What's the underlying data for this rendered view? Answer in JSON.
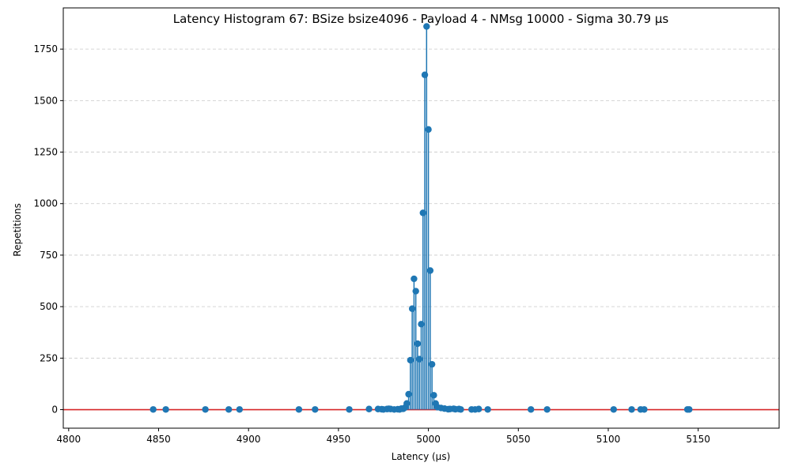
{
  "chart_data": {
    "type": "stem",
    "title": "Latency Histogram 67: BSize bsize4096 - Payload 4 - NMsg 10000 - Sigma 30.79 µs",
    "xlabel": "Latency (µs)",
    "ylabel": "Repetitions",
    "xlim": [
      4797,
      5195
    ],
    "ylim": [
      -90,
      1950
    ],
    "xticks": [
      4800,
      4850,
      4900,
      4950,
      5000,
      5050,
      5100,
      5150
    ],
    "yticks": [
      0,
      250,
      500,
      750,
      1000,
      1250,
      1500,
      1750
    ],
    "grid": "horizontal dashed",
    "baseline": 0,
    "colors": {
      "stem": "#1f77b4",
      "baseline": "#d62728",
      "grid": "#c8c8c8"
    },
    "points": [
      {
        "x": 4847,
        "y": 1
      },
      {
        "x": 4854,
        "y": 1
      },
      {
        "x": 4876,
        "y": 1
      },
      {
        "x": 4889,
        "y": 1
      },
      {
        "x": 4895,
        "y": 1
      },
      {
        "x": 4928,
        "y": 1
      },
      {
        "x": 4937,
        "y": 1
      },
      {
        "x": 4956,
        "y": 1
      },
      {
        "x": 4967,
        "y": 3
      },
      {
        "x": 4972,
        "y": 3
      },
      {
        "x": 4974,
        "y": 2
      },
      {
        "x": 4975,
        "y": 1
      },
      {
        "x": 4977,
        "y": 3
      },
      {
        "x": 4978,
        "y": 4
      },
      {
        "x": 4979,
        "y": 3
      },
      {
        "x": 4981,
        "y": 1
      },
      {
        "x": 4983,
        "y": 2
      },
      {
        "x": 4984,
        "y": 1
      },
      {
        "x": 4985,
        "y": 5
      },
      {
        "x": 4986,
        "y": 4
      },
      {
        "x": 4987,
        "y": 10
      },
      {
        "x": 4988,
        "y": 30
      },
      {
        "x": 4989,
        "y": 75
      },
      {
        "x": 4990,
        "y": 240
      },
      {
        "x": 4991,
        "y": 490
      },
      {
        "x": 4992,
        "y": 635
      },
      {
        "x": 4993,
        "y": 575
      },
      {
        "x": 4994,
        "y": 320
      },
      {
        "x": 4995,
        "y": 245
      },
      {
        "x": 4996,
        "y": 415
      },
      {
        "x": 4997,
        "y": 955
      },
      {
        "x": 4998,
        "y": 1625
      },
      {
        "x": 4999,
        "y": 1860
      },
      {
        "x": 5000,
        "y": 1360
      },
      {
        "x": 5001,
        "y": 675
      },
      {
        "x": 5002,
        "y": 220
      },
      {
        "x": 5003,
        "y": 70
      },
      {
        "x": 5004,
        "y": 30
      },
      {
        "x": 5005,
        "y": 12
      },
      {
        "x": 5007,
        "y": 8
      },
      {
        "x": 5009,
        "y": 5
      },
      {
        "x": 5011,
        "y": 2
      },
      {
        "x": 5012,
        "y": 3
      },
      {
        "x": 5014,
        "y": 4
      },
      {
        "x": 5015,
        "y": 2
      },
      {
        "x": 5017,
        "y": 3
      },
      {
        "x": 5018,
        "y": 1
      },
      {
        "x": 5024,
        "y": 1
      },
      {
        "x": 5026,
        "y": 1
      },
      {
        "x": 5028,
        "y": 3
      },
      {
        "x": 5033,
        "y": 1
      },
      {
        "x": 5057,
        "y": 1
      },
      {
        "x": 5066,
        "y": 1
      },
      {
        "x": 5103,
        "y": 1
      },
      {
        "x": 5113,
        "y": 1
      },
      {
        "x": 5118,
        "y": 1
      },
      {
        "x": 5120,
        "y": 1
      },
      {
        "x": 5144,
        "y": 1
      },
      {
        "x": 5145,
        "y": 1
      }
    ]
  }
}
